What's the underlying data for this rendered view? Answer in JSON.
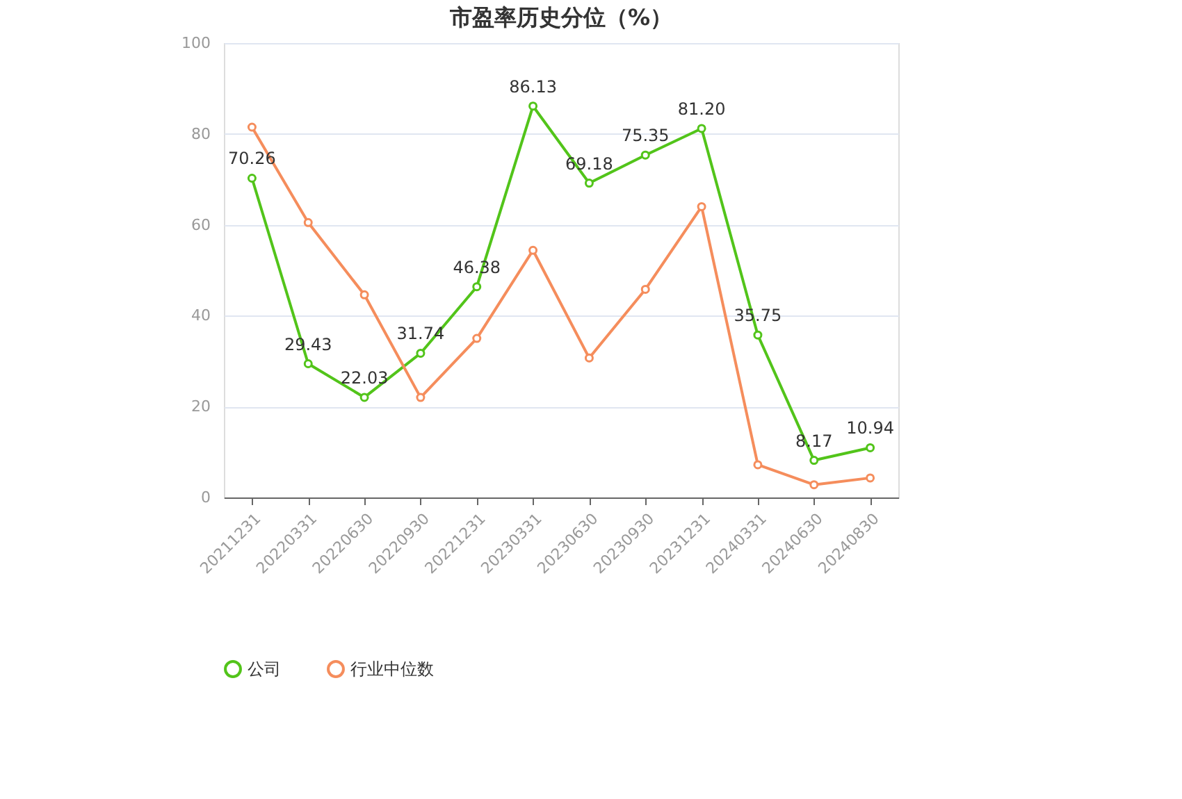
{
  "chart_data": {
    "type": "line",
    "title": "市盈率历史分位（%）",
    "categories": [
      "20211231",
      "20220331",
      "20220630",
      "20220930",
      "20221231",
      "20230331",
      "20230630",
      "20230930",
      "20231231",
      "20240331",
      "20240630",
      "20240830"
    ],
    "series": [
      {
        "name": "公司",
        "color": "#52c41a",
        "values": [
          70.26,
          29.43,
          22.03,
          31.74,
          46.38,
          86.13,
          69.18,
          75.35,
          81.2,
          35.75,
          8.17,
          10.94
        ],
        "value_labels": [
          "70.26",
          "29.43",
          "22.03",
          "31.74",
          "46.38",
          "86.13",
          "69.18",
          "75.35",
          "81.20",
          "35.75",
          "8.17",
          "10.94"
        ]
      },
      {
        "name": "行业中位数",
        "color": "#f58d5c",
        "values": [
          81.5,
          60.5,
          44.6,
          22.0,
          35.0,
          54.4,
          30.7,
          45.8,
          64.0,
          7.2,
          2.8,
          4.3
        ]
      }
    ],
    "ylim": [
      0,
      100
    ],
    "yticks": [
      0,
      20,
      40,
      60,
      80,
      100
    ],
    "grid": "y",
    "legend": "bottom",
    "marker": "circle",
    "line_style": "solid"
  }
}
